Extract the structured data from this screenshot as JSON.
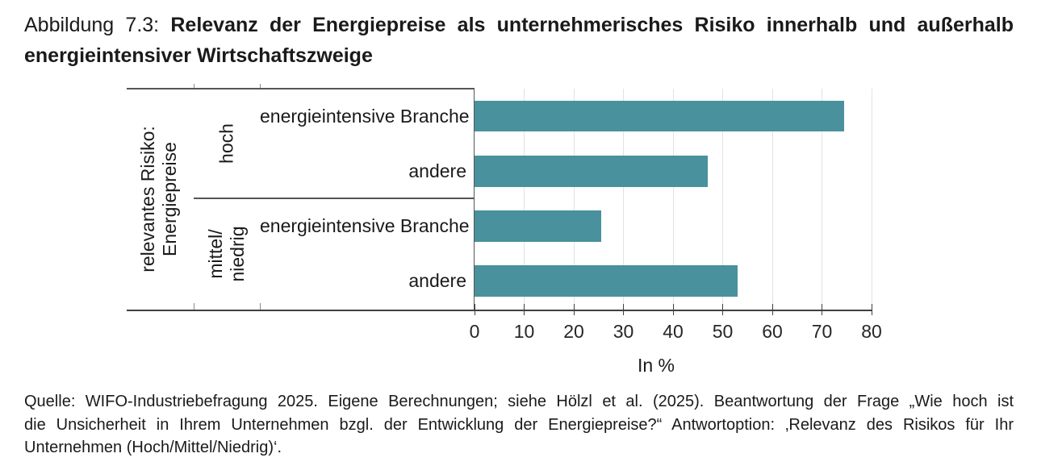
{
  "figure": {
    "label": "Abbildung 7.3:",
    "title_line1": "Relevanz der Energiepreise als unternehmerisches Risiko innerhalb und außerhalb",
    "title_line2": "energieintensiver Wirtschaftszweige"
  },
  "chart_data": {
    "type": "bar",
    "orientation": "horizontal",
    "title": "",
    "xlabel": "In %",
    "ylabel_lines": [
      "relevantes Risiko:",
      "Energiepreise"
    ],
    "xlim": [
      0,
      80
    ],
    "x_ticks": [
      0,
      10,
      20,
      30,
      40,
      50,
      60,
      70,
      80
    ],
    "grid": true,
    "legend": "none",
    "bar_color": "#48919d",
    "groups": [
      {
        "label": "hoch",
        "label_lines": [
          "hoch"
        ],
        "bars": [
          {
            "category": "energieintensive Branche",
            "value": 74.5
          },
          {
            "category": "andere",
            "value": 47
          }
        ]
      },
      {
        "label": "mittel/niedrig",
        "label_lines": [
          "mittel/",
          "niedrig"
        ],
        "bars": [
          {
            "category": "energieintensive Branche",
            "value": 25.5
          },
          {
            "category": "andere",
            "value": 53
          }
        ]
      }
    ]
  },
  "source": {
    "lines": [
      "Quelle: WIFO-Industriebefragung 2025. Eigene Berechnungen; siehe Hölzl et al. (2025). Beantwortung der Frage „Wie hoch ist",
      "die Unsicherheit in Ihrem Unternehmen bzgl. der Entwicklung der Energiepreise?“ Antwortoption: ‚Relevanz des Risikos für Ihr",
      "Unternehmen (Hoch/Mittel/Niedrig)‘."
    ]
  },
  "colors": {
    "bar": "#48919d",
    "gridline": "#e2e2e2",
    "box_border": "#555555",
    "axis_line": "#3f3f3f",
    "text": "#1a1a1a"
  }
}
